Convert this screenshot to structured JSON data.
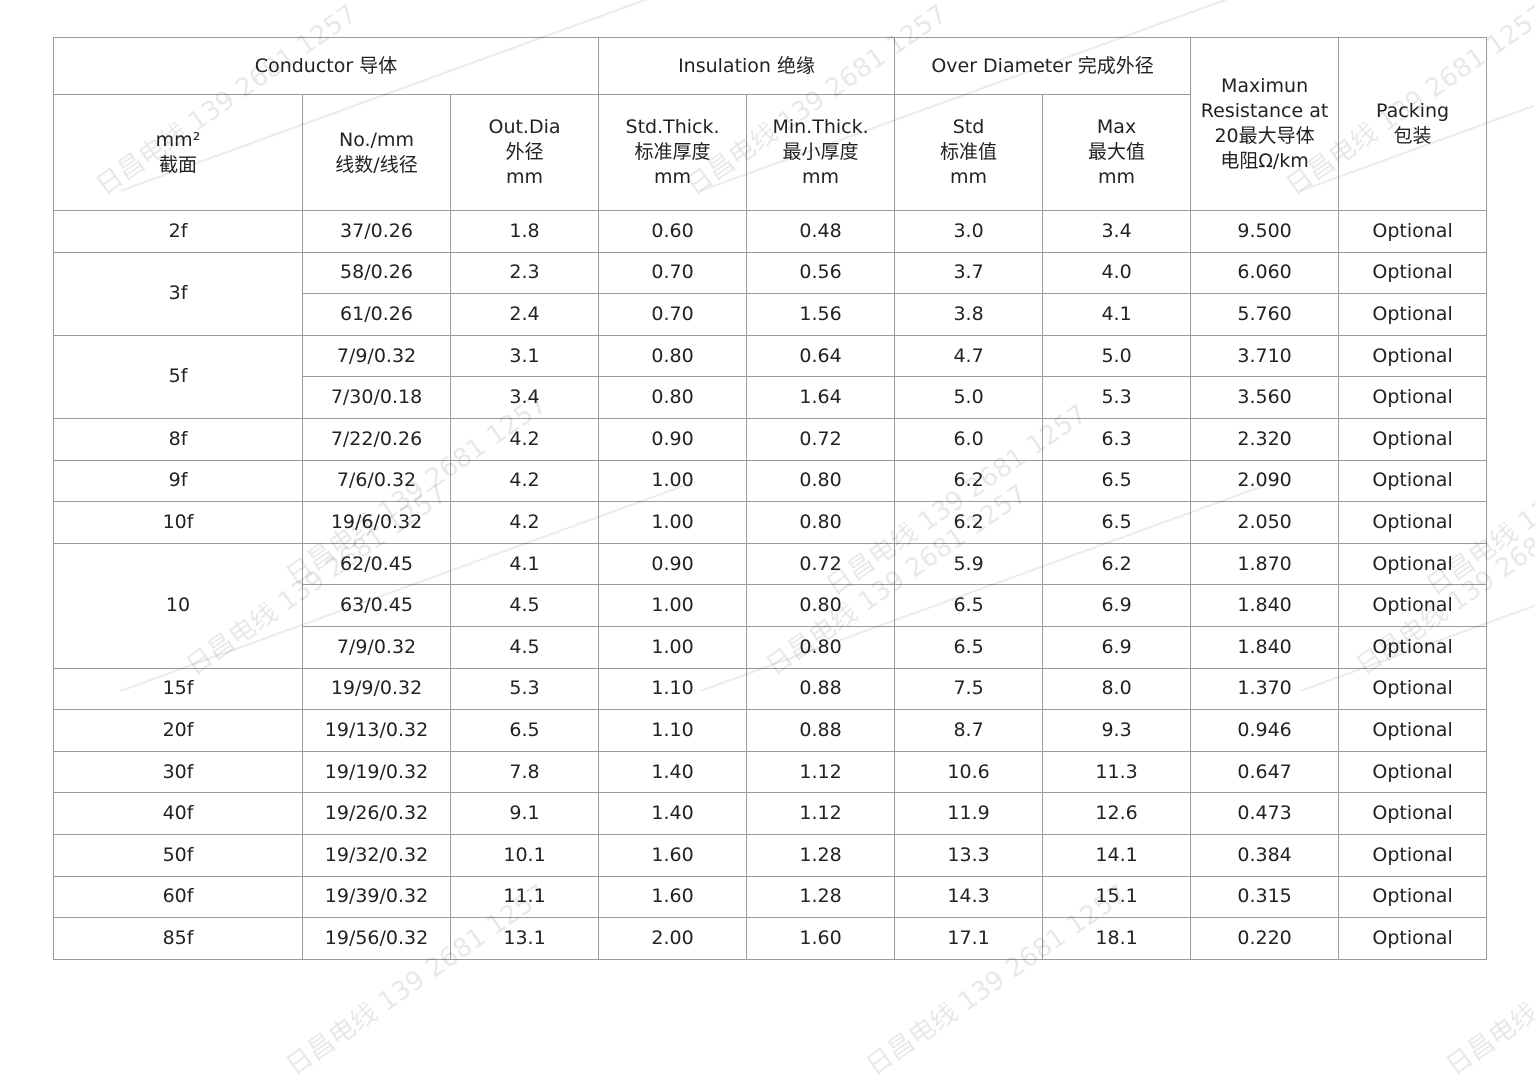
{
  "header": {
    "conductor": "Conductor 导体",
    "insulation": "Insulation 绝缘",
    "over_diameter": "Over Diameter 完成外径",
    "resistance": "Maximun\nResistance at\n20最大导体\n电阻Ω/km",
    "packing": "Packing\n包装",
    "size": "mm²\n截面",
    "strands": "No./mm\n线数/线径",
    "out_dia": "Out.Dia\n外径\nmm",
    "std_thick": "Std.Thick.\n标准厚度\nmm",
    "min_thick": "Min.Thick.\n最小厚度\nmm",
    "od_std": "Std\n标准值\nmm",
    "od_max": "Max\n最大值\nmm"
  },
  "watermark": "日昌电线 139 2681 1257",
  "groups": [
    {
      "size": "2f",
      "rows": [
        [
          "37/0.26",
          "1.8",
          "0.60",
          "0.48",
          "3.0",
          "3.4",
          "9.500",
          "Optional"
        ]
      ]
    },
    {
      "size": "3f",
      "rows": [
        [
          "58/0.26",
          "2.3",
          "0.70",
          "0.56",
          "3.7",
          "4.0",
          "6.060",
          "Optional"
        ],
        [
          "61/0.26",
          "2.4",
          "0.70",
          "1.56",
          "3.8",
          "4.1",
          "5.760",
          "Optional"
        ]
      ]
    },
    {
      "size": "5f",
      "rows": [
        [
          "7/9/0.32",
          "3.1",
          "0.80",
          "0.64",
          "4.7",
          "5.0",
          "3.710",
          "Optional"
        ],
        [
          "7/30/0.18",
          "3.4",
          "0.80",
          "1.64",
          "5.0",
          "5.3",
          "3.560",
          "Optional"
        ]
      ]
    },
    {
      "size": "8f",
      "rows": [
        [
          "7/22/0.26",
          "4.2",
          "0.90",
          "0.72",
          "6.0",
          "6.3",
          "2.320",
          "Optional"
        ]
      ]
    },
    {
      "size": "9f",
      "rows": [
        [
          "7/6/0.32",
          "4.2",
          "1.00",
          "0.80",
          "6.2",
          "6.5",
          "2.090",
          "Optional"
        ]
      ]
    },
    {
      "size": "10f",
      "rows": [
        [
          "19/6/0.32",
          "4.2",
          "1.00",
          "0.80",
          "6.2",
          "6.5",
          "2.050",
          "Optional"
        ]
      ]
    },
    {
      "size": "10",
      "rows": [
        [
          "62/0.45",
          "4.1",
          "0.90",
          "0.72",
          "5.9",
          "6.2",
          "1.870",
          "Optional"
        ],
        [
          "63/0.45",
          "4.5",
          "1.00",
          "0.80",
          "6.5",
          "6.9",
          "1.840",
          "Optional"
        ],
        [
          "7/9/0.32",
          "4.5",
          "1.00",
          "0.80",
          "6.5",
          "6.9",
          "1.840",
          "Optional"
        ]
      ]
    },
    {
      "size": "15f",
      "rows": [
        [
          "19/9/0.32",
          "5.3",
          "1.10",
          "0.88",
          "7.5",
          "8.0",
          "1.370",
          "Optional"
        ]
      ]
    },
    {
      "size": "20f",
      "rows": [
        [
          "19/13/0.32",
          "6.5",
          "1.10",
          "0.88",
          "8.7",
          "9.3",
          "0.946",
          "Optional"
        ]
      ]
    },
    {
      "size": "30f",
      "rows": [
        [
          "19/19/0.32",
          "7.8",
          "1.40",
          "1.12",
          "10.6",
          "11.3",
          "0.647",
          "Optional"
        ]
      ]
    },
    {
      "size": "40f",
      "rows": [
        [
          "19/26/0.32",
          "9.1",
          "1.40",
          "1.12",
          "11.9",
          "12.6",
          "0.473",
          "Optional"
        ]
      ]
    },
    {
      "size": "50f",
      "rows": [
        [
          "19/32/0.32",
          "10.1",
          "1.60",
          "1.28",
          "13.3",
          "14.1",
          "0.384",
          "Optional"
        ]
      ]
    },
    {
      "size": "60f",
      "rows": [
        [
          "19/39/0.32",
          "11.1",
          "1.60",
          "1.28",
          "14.3",
          "15.1",
          "0.315",
          "Optional"
        ]
      ]
    },
    {
      "size": "85f",
      "rows": [
        [
          "19/56/0.32",
          "13.1",
          "2.00",
          "1.60",
          "17.1",
          "18.1",
          "0.220",
          "Optional"
        ]
      ]
    }
  ]
}
